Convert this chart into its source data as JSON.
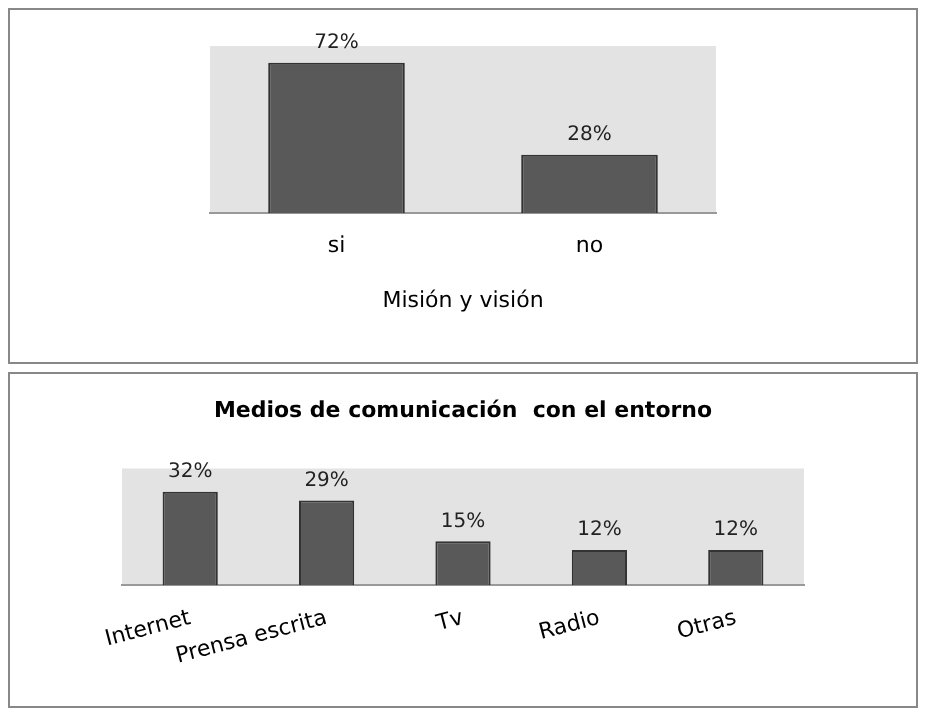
{
  "chart_data": [
    {
      "type": "bar",
      "xlabel": "Misión y visión",
      "categories": [
        "si",
        "no"
      ],
      "values": [
        72,
        28
      ],
      "value_labels": [
        "72%",
        "28%"
      ],
      "color": "#595959",
      "grid": false,
      "legend": false,
      "tick_labels": "x"
    },
    {
      "type": "bar",
      "title": "Medios de comunicación  con el entorno",
      "categories": [
        "Internet",
        "Prensa escrita",
        "Tv",
        "Radio",
        "Otras"
      ],
      "values": [
        32,
        29,
        15,
        12,
        12
      ],
      "value_labels": [
        "32%",
        "29%",
        "15%",
        "12%",
        "12%"
      ],
      "color": "#595959",
      "grid": false,
      "legend": false,
      "tick_labels": "x"
    }
  ]
}
